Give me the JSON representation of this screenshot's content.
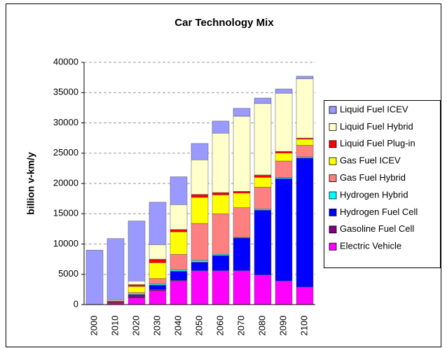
{
  "chart_data": {
    "type": "stacked_bar",
    "title": "Car Technology Mix",
    "y_label": "billion v-km/y",
    "categories": [
      "2000",
      "2010",
      "2020",
      "2030",
      "2040",
      "2050",
      "2060",
      "2070",
      "2080",
      "2090",
      "2100"
    ],
    "series": [
      {
        "name": "Liquid Fuel ICEV",
        "color": "#9999ff",
        "values": [
          9000,
          10100,
          9900,
          7000,
          4600,
          2700,
          2000,
          1300,
          900,
          700,
          400
        ]
      },
      {
        "name": "Liquid Fuel Hybrid",
        "color": "#ffffcc",
        "values": [
          0,
          200,
          600,
          2400,
          4100,
          5700,
          9800,
          12400,
          11800,
          9600,
          9800
        ]
      },
      {
        "name": "Liquid Fuel Plug-in",
        "color": "#ff0000",
        "values": [
          0,
          200,
          300,
          600,
          400,
          500,
          400,
          300,
          400,
          300,
          200
        ]
      },
      {
        "name": "Gas Fuel ICEV",
        "color": "#ffff00",
        "values": [
          0,
          0,
          1000,
          2600,
          3700,
          4300,
          3100,
          2400,
          1600,
          1300,
          1000
        ]
      },
      {
        "name": "Gas Fuel Hybrid",
        "color": "#ff8080",
        "values": [
          0,
          0,
          300,
          900,
          2600,
          6100,
          6700,
          4900,
          3600,
          2700,
          1900
        ]
      },
      {
        "name": "Hydrogen Hybrid",
        "color": "#00ffff",
        "values": [
          0,
          0,
          100,
          200,
          200,
          300,
          200,
          100,
          200,
          200,
          200
        ]
      },
      {
        "name": "Hydrogen Fuel Cell",
        "color": "#0000ff",
        "values": [
          0,
          0,
          200,
          700,
          1500,
          1400,
          2500,
          5400,
          10700,
          16900,
          21300
        ]
      },
      {
        "name": "Gasoline Fuel Cell",
        "color": "#800080",
        "values": [
          0,
          200,
          300,
          200,
          100,
          0,
          0,
          0,
          0,
          0,
          0
        ]
      },
      {
        "name": "Electric Vehicle",
        "color": "#ff00ff",
        "values": [
          0,
          200,
          1100,
          2300,
          3900,
          5600,
          5600,
          5600,
          4900,
          3900,
          2900
        ]
      }
    ],
    "ylim": [
      0,
      40000
    ],
    "yticks": [
      0,
      5000,
      10000,
      15000,
      20000,
      25000,
      30000,
      35000,
      40000
    ],
    "grid": true,
    "legend": "right"
  }
}
